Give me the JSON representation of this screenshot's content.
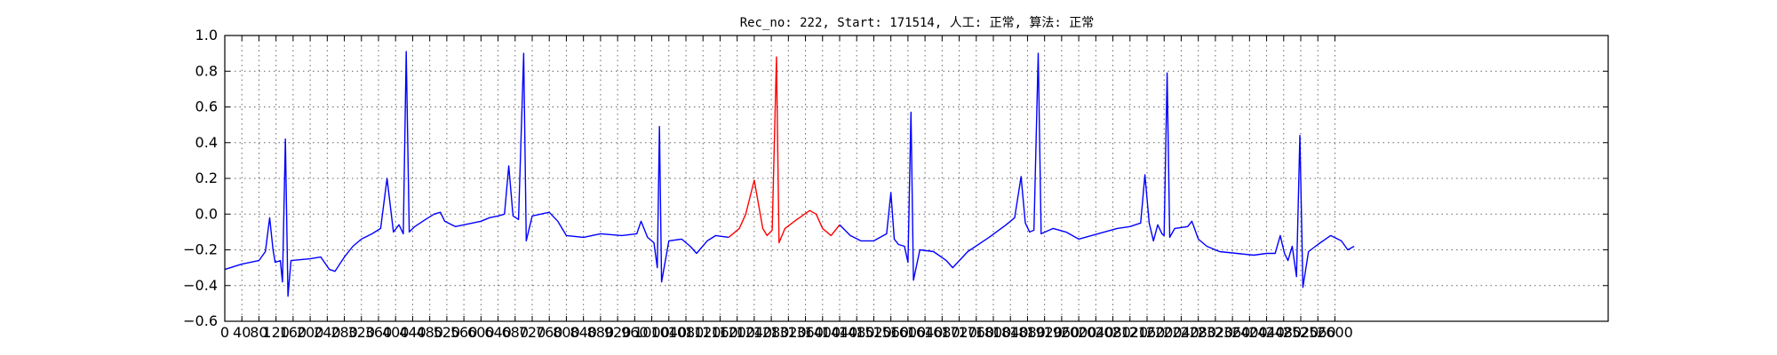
{
  "chart_data": {
    "type": "line",
    "title": "Rec_no: 222, Start: 171514, 人工: 正常, 算法: 正常",
    "xlabel": "",
    "ylabel": "",
    "xlim": [
      0,
      3240
    ],
    "ylim": [
      -0.6,
      1.0
    ],
    "yticks": [
      -0.6,
      -0.4,
      -0.2,
      0.0,
      0.2,
      0.4,
      0.6,
      0.8,
      1.0
    ],
    "xticks": [
      0,
      40,
      80,
      120,
      160,
      200,
      240,
      280,
      320,
      360,
      400,
      440,
      480,
      520,
      560,
      600,
      640,
      680,
      720,
      760,
      800,
      840,
      880,
      920,
      960,
      1000,
      1040,
      1080,
      1120,
      1160,
      1200,
      1240,
      1280,
      1320,
      1360,
      1400,
      1440,
      1480,
      1520,
      1560,
      1600,
      1640,
      1680,
      1720,
      1760,
      1800,
      1840,
      1880,
      1920,
      1960,
      2000,
      2040,
      2080,
      2120,
      2160,
      2200,
      2240,
      2280,
      2320,
      2360,
      2400,
      2440,
      2480,
      2520,
      2560,
      2600
    ],
    "grid": true,
    "series": [
      {
        "color": "#0000ff",
        "points": [
          [
            0,
            -0.31
          ],
          [
            40,
            -0.28
          ],
          [
            80,
            -0.26
          ],
          [
            95,
            -0.21
          ],
          [
            105,
            -0.02
          ],
          [
            113,
            -0.2
          ],
          [
            118,
            -0.27
          ],
          [
            130,
            -0.26
          ],
          [
            135,
            -0.38
          ],
          [
            142,
            0.42
          ],
          [
            148,
            -0.46
          ],
          [
            155,
            -0.26
          ],
          [
            200,
            -0.25
          ],
          [
            225,
            -0.24
          ],
          [
            245,
            -0.31
          ],
          [
            258,
            -0.32
          ],
          [
            280,
            -0.24
          ],
          [
            300,
            -0.18
          ],
          [
            320,
            -0.14
          ],
          [
            345,
            -0.11
          ],
          [
            365,
            -0.08
          ],
          [
            380,
            0.2
          ],
          [
            395,
            -0.1
          ],
          [
            408,
            -0.06
          ],
          [
            418,
            -0.11
          ],
          [
            425,
            0.91
          ],
          [
            432,
            -0.1
          ],
          [
            445,
            -0.07
          ],
          [
            470,
            -0.03
          ],
          [
            490,
            0.0
          ],
          [
            505,
            0.01
          ],
          [
            515,
            -0.04
          ],
          [
            540,
            -0.07
          ],
          [
            560,
            -0.06
          ],
          [
            600,
            -0.04
          ],
          [
            620,
            -0.02
          ],
          [
            640,
            -0.01
          ],
          [
            655,
            0.0
          ],
          [
            665,
            0.27
          ],
          [
            675,
            -0.01
          ],
          [
            688,
            -0.03
          ],
          [
            700,
            0.9
          ],
          [
            706,
            -0.15
          ],
          [
            720,
            -0.01
          ],
          [
            760,
            0.01
          ],
          [
            780,
            -0.04
          ],
          [
            800,
            -0.12
          ],
          [
            840,
            -0.13
          ],
          [
            880,
            -0.11
          ],
          [
            930,
            -0.12
          ],
          [
            965,
            -0.11
          ],
          [
            975,
            -0.04
          ],
          [
            990,
            -0.13
          ],
          [
            1005,
            -0.16
          ],
          [
            1013,
            -0.3
          ],
          [
            1018,
            0.49
          ],
          [
            1023,
            -0.38
          ],
          [
            1040,
            -0.15
          ],
          [
            1070,
            -0.14
          ],
          [
            1090,
            -0.18
          ],
          [
            1105,
            -0.22
          ],
          [
            1130,
            -0.15
          ],
          [
            1150,
            -0.12
          ],
          [
            1180,
            -0.13
          ]
        ]
      },
      {
        "color": "#ff0000",
        "points": [
          [
            1180,
            -0.13
          ],
          [
            1205,
            -0.08
          ],
          [
            1220,
            0.0
          ],
          [
            1240,
            0.19
          ],
          [
            1260,
            -0.08
          ],
          [
            1270,
            -0.12
          ],
          [
            1282,
            -0.09
          ],
          [
            1292,
            0.88
          ],
          [
            1298,
            -0.16
          ],
          [
            1312,
            -0.08
          ],
          [
            1340,
            -0.03
          ],
          [
            1370,
            0.02
          ],
          [
            1385,
            0.0
          ],
          [
            1400,
            -0.08
          ],
          [
            1420,
            -0.12
          ],
          [
            1440,
            -0.06
          ]
        ]
      },
      {
        "color": "#0000ff",
        "points": [
          [
            1440,
            -0.06
          ],
          [
            1465,
            -0.12
          ],
          [
            1490,
            -0.15
          ],
          [
            1520,
            -0.15
          ],
          [
            1550,
            -0.11
          ],
          [
            1560,
            0.12
          ],
          [
            1568,
            -0.14
          ],
          [
            1578,
            -0.17
          ],
          [
            1592,
            -0.18
          ],
          [
            1600,
            -0.27
          ],
          [
            1607,
            0.57
          ],
          [
            1613,
            -0.37
          ],
          [
            1628,
            -0.2
          ],
          [
            1660,
            -0.21
          ],
          [
            1690,
            -0.26
          ],
          [
            1705,
            -0.3
          ],
          [
            1740,
            -0.21
          ],
          [
            1790,
            -0.13
          ],
          [
            1830,
            -0.06
          ],
          [
            1850,
            -0.02
          ],
          [
            1865,
            0.21
          ],
          [
            1875,
            -0.05
          ],
          [
            1885,
            -0.1
          ],
          [
            1895,
            -0.09
          ],
          [
            1905,
            0.9
          ],
          [
            1912,
            -0.11
          ],
          [
            1940,
            -0.08
          ],
          [
            1970,
            -0.1
          ],
          [
            2000,
            -0.14
          ],
          [
            2030,
            -0.12
          ],
          [
            2060,
            -0.1
          ],
          [
            2090,
            -0.08
          ],
          [
            2120,
            -0.07
          ],
          [
            2145,
            -0.05
          ],
          [
            2155,
            0.22
          ],
          [
            2165,
            -0.05
          ],
          [
            2175,
            -0.15
          ],
          [
            2185,
            -0.06
          ],
          [
            2195,
            -0.11
          ],
          [
            2200,
            -0.12
          ],
          [
            2207,
            0.79
          ],
          [
            2213,
            -0.13
          ],
          [
            2225,
            -0.08
          ],
          [
            2255,
            -0.07
          ],
          [
            2265,
            -0.04
          ],
          [
            2280,
            -0.14
          ],
          [
            2300,
            -0.18
          ],
          [
            2330,
            -0.21
          ],
          [
            2370,
            -0.22
          ],
          [
            2410,
            -0.23
          ],
          [
            2440,
            -0.22
          ],
          [
            2460,
            -0.22
          ],
          [
            2472,
            -0.12
          ],
          [
            2482,
            -0.22
          ],
          [
            2490,
            -0.26
          ],
          [
            2500,
            -0.18
          ],
          [
            2510,
            -0.35
          ],
          [
            2518,
            0.44
          ],
          [
            2525,
            -0.41
          ],
          [
            2538,
            -0.21
          ],
          [
            2560,
            -0.17
          ],
          [
            2590,
            -0.12
          ],
          [
            2615,
            -0.15
          ],
          [
            2630,
            -0.2
          ],
          [
            2645,
            -0.18
          ]
        ]
      }
    ]
  }
}
